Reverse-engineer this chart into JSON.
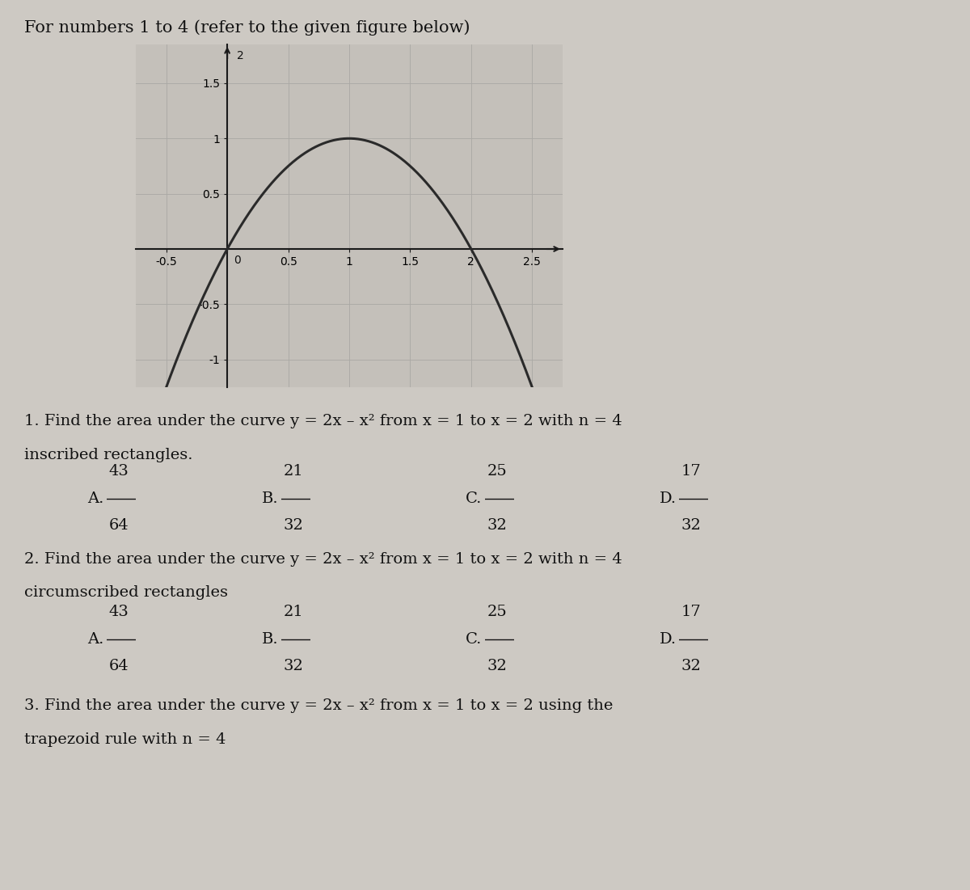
{
  "title": "For numbers 1 to 4 (refer to the given figure below)",
  "title_fontsize": 15,
  "background_color": "#cdc9c3",
  "plot_bg_color": "#c4c0ba",
  "curve_color": "#2a2a2a",
  "curve_linewidth": 2.2,
  "xlim": [
    -0.75,
    2.75
  ],
  "ylim": [
    -1.25,
    1.85
  ],
  "xticks": [
    -0.5,
    0,
    0.5,
    1,
    1.5,
    2,
    2.5
  ],
  "yticks": [
    -1,
    -0.5,
    0,
    0.5,
    1,
    1.5
  ],
  "ytick_extra": 2,
  "grid_color": "#aaa9a5",
  "axis_color": "#1a1a1a",
  "tick_fontsize": 10,
  "q1_line1": "1. Find the area under the curve y = 2x – x² from x = 1 to x = 2 with n = 4",
  "q1_line2": "inscribed rectangles.",
  "q2_line1": "2. Find the area under the curve y = 2x – x² from x = 1 to x = 2 with n = 4",
  "q2_line2": "circumscribed rectangles",
  "q3_line1": "3. Find the area under the curve y = 2x – x² from x = 1 to x = 2 using the",
  "q3_line2": "trapezoid rule with n = 4",
  "q1_answers": [
    {
      "label": "A.",
      "num": "43",
      "den": "64"
    },
    {
      "label": "B.",
      "num": "21",
      "den": "32"
    },
    {
      "label": "C.",
      "num": "25",
      "den": "32"
    },
    {
      "label": "D.",
      "num": "17",
      "den": "32"
    }
  ],
  "q2_answers": [
    {
      "label": "A.",
      "num": "43",
      "den": "64"
    },
    {
      "label": "B.",
      "num": "21",
      "den": "32"
    },
    {
      "label": "C.",
      "num": "25",
      "den": "32"
    },
    {
      "label": "D.",
      "num": "17",
      "den": "32"
    }
  ],
  "text_color": "#111111",
  "text_fontsize": 14
}
